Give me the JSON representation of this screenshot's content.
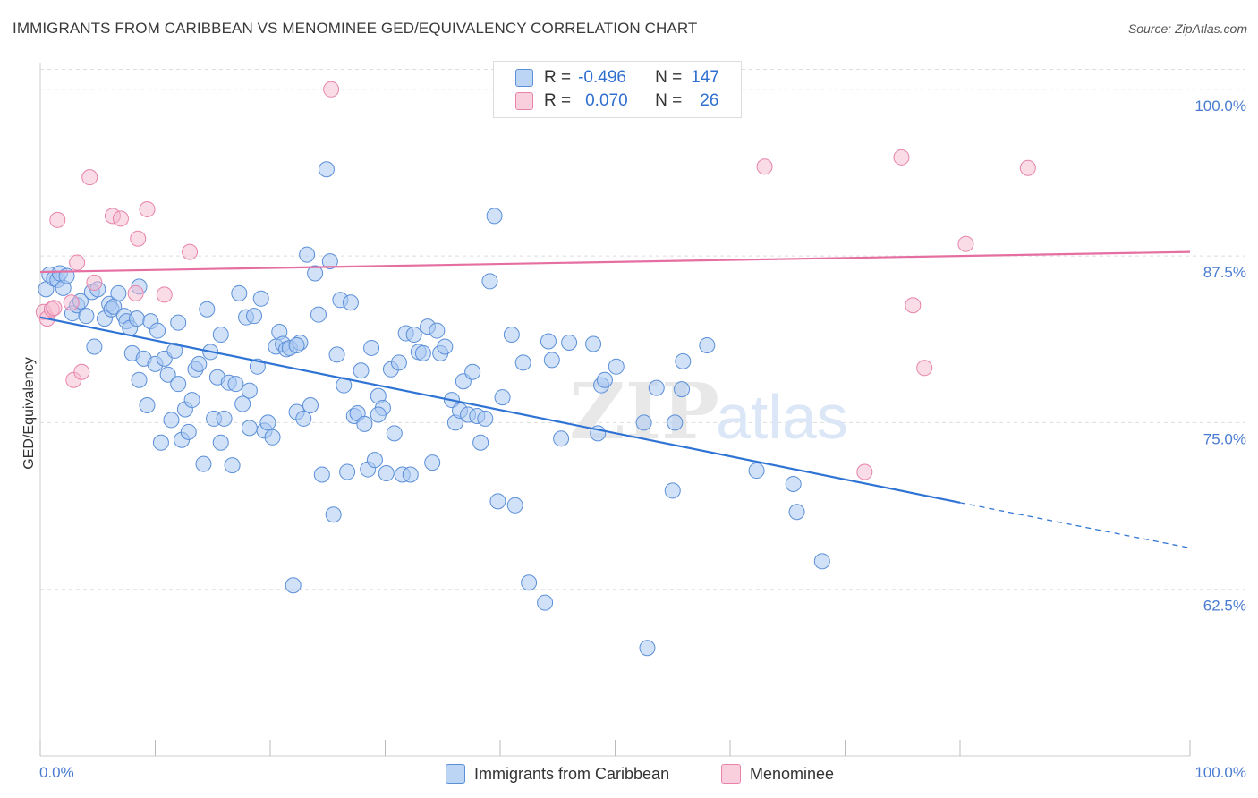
{
  "header": {
    "title": "IMMIGRANTS FROM CARIBBEAN VS MENOMINEE GED/EQUIVALENCY CORRELATION CHART",
    "source": "Source: ZipAtlas.com"
  },
  "legend": {
    "rows": [
      {
        "r_label": "R =",
        "r_value": "-0.496",
        "n_label": "N =",
        "n_value": "147"
      },
      {
        "r_label": "R =",
        "r_value": "0.070",
        "n_label": "N =",
        "n_value": "26"
      }
    ]
  },
  "bottom_legend": [
    "Immigrants from Caribbean",
    "Menominee"
  ],
  "colors": {
    "blue": "#2f74d4",
    "blue_fill": "#a9c8f2",
    "pink": "#e46fa0",
    "pink_fill": "#f6b9d0",
    "tick_text": "#4a7bd0",
    "grid": "#dddddd"
  },
  "chart_data": {
    "type": "scatter",
    "title": "IMMIGRANTS FROM CARIBBEAN VS MENOMINEE GED/EQUIVALENCY CORRELATION CHART",
    "xlabel": "",
    "ylabel": "GED/Equivalency",
    "xlim": [
      0,
      100
    ],
    "ylim": [
      50,
      102
    ],
    "x_tick_labels": [
      "0.0%",
      "100.0%"
    ],
    "y_ticks": [
      62.5,
      75.0,
      87.5,
      100.0
    ],
    "y_tick_labels": [
      "62.5%",
      "75.0%",
      "87.5%",
      "100.0%"
    ],
    "grid": true,
    "legend_position": "top-center",
    "watermark": "ZIPatlas",
    "series": [
      {
        "name": "Immigrants from Caribbean",
        "color": "#2f74d4",
        "r": -0.496,
        "n": 147,
        "trend": {
          "x": [
            0,
            80
          ],
          "y": [
            82.9,
            69.0
          ],
          "dashed_to": [
            100,
            65.6
          ]
        },
        "points": [
          [
            0.5,
            85.0
          ],
          [
            0.8,
            86.1
          ],
          [
            1.2,
            85.8
          ],
          [
            1.5,
            85.7
          ],
          [
            1.7,
            86.2
          ],
          [
            2.0,
            85.1
          ],
          [
            2.3,
            86.0
          ],
          [
            2.8,
            83.2
          ],
          [
            3.2,
            83.8
          ],
          [
            3.5,
            84.1
          ],
          [
            4.0,
            83.0
          ],
          [
            4.5,
            84.8
          ],
          [
            4.7,
            80.7
          ],
          [
            5.0,
            85.0
          ],
          [
            5.6,
            82.8
          ],
          [
            6.0,
            83.9
          ],
          [
            6.2,
            83.5
          ],
          [
            6.4,
            83.7
          ],
          [
            6.8,
            84.7
          ],
          [
            7.3,
            83.0
          ],
          [
            7.5,
            82.6
          ],
          [
            7.8,
            82.1
          ],
          [
            8.0,
            80.2
          ],
          [
            8.4,
            82.8
          ],
          [
            8.6,
            85.2
          ],
          [
            9.0,
            79.8
          ],
          [
            9.3,
            76.3
          ],
          [
            9.6,
            82.6
          ],
          [
            10.0,
            79.4
          ],
          [
            10.2,
            81.9
          ],
          [
            10.5,
            73.5
          ],
          [
            10.8,
            79.8
          ],
          [
            11.1,
            78.6
          ],
          [
            11.4,
            75.2
          ],
          [
            11.7,
            80.4
          ],
          [
            12.0,
            82.5
          ],
          [
            12.3,
            73.7
          ],
          [
            12.6,
            76.0
          ],
          [
            12.9,
            74.3
          ],
          [
            13.2,
            76.7
          ],
          [
            13.5,
            79.0
          ],
          [
            13.8,
            79.4
          ],
          [
            14.2,
            71.9
          ],
          [
            14.5,
            83.5
          ],
          [
            14.8,
            80.3
          ],
          [
            15.1,
            75.3
          ],
          [
            15.4,
            78.4
          ],
          [
            15.7,
            81.6
          ],
          [
            16.0,
            75.3
          ],
          [
            16.4,
            78.0
          ],
          [
            16.7,
            71.8
          ],
          [
            17.0,
            77.9
          ],
          [
            17.3,
            84.7
          ],
          [
            17.6,
            76.4
          ],
          [
            17.9,
            82.9
          ],
          [
            18.2,
            77.4
          ],
          [
            18.6,
            83.0
          ],
          [
            18.9,
            79.2
          ],
          [
            19.2,
            84.3
          ],
          [
            19.5,
            74.4
          ],
          [
            19.8,
            75.0
          ],
          [
            20.2,
            73.9
          ],
          [
            20.5,
            80.7
          ],
          [
            20.8,
            81.8
          ],
          [
            21.1,
            80.9
          ],
          [
            21.4,
            80.5
          ],
          [
            21.7,
            80.6
          ],
          [
            22.0,
            62.8
          ],
          [
            22.3,
            75.8
          ],
          [
            22.6,
            81.0
          ],
          [
            22.9,
            75.3
          ],
          [
            23.2,
            87.6
          ],
          [
            23.5,
            76.3
          ],
          [
            23.9,
            86.2
          ],
          [
            24.2,
            83.1
          ],
          [
            24.5,
            71.1
          ],
          [
            24.9,
            94.0
          ],
          [
            25.2,
            87.1
          ],
          [
            25.5,
            68.1
          ],
          [
            25.8,
            80.1
          ],
          [
            26.1,
            84.2
          ],
          [
            26.4,
            77.8
          ],
          [
            26.7,
            71.3
          ],
          [
            27.0,
            84.0
          ],
          [
            27.3,
            75.5
          ],
          [
            27.6,
            75.7
          ],
          [
            27.9,
            78.9
          ],
          [
            28.2,
            74.9
          ],
          [
            28.5,
            71.5
          ],
          [
            28.8,
            80.6
          ],
          [
            29.1,
            72.2
          ],
          [
            29.4,
            77.0
          ],
          [
            29.8,
            76.1
          ],
          [
            30.1,
            71.2
          ],
          [
            30.5,
            79.0
          ],
          [
            30.8,
            74.2
          ],
          [
            31.2,
            79.5
          ],
          [
            31.5,
            71.1
          ],
          [
            31.8,
            81.7
          ],
          [
            32.2,
            71.1
          ],
          [
            32.5,
            81.6
          ],
          [
            32.9,
            80.3
          ],
          [
            33.3,
            80.2
          ],
          [
            33.7,
            82.2
          ],
          [
            34.1,
            72.0
          ],
          [
            34.5,
            81.9
          ],
          [
            34.8,
            80.2
          ],
          [
            35.2,
            80.7
          ],
          [
            35.8,
            76.7
          ],
          [
            36.1,
            75.0
          ],
          [
            36.5,
            75.9
          ],
          [
            36.8,
            78.1
          ],
          [
            37.2,
            75.6
          ],
          [
            37.6,
            78.8
          ],
          [
            38.0,
            75.5
          ],
          [
            38.3,
            73.5
          ],
          [
            38.7,
            75.3
          ],
          [
            39.1,
            85.6
          ],
          [
            39.5,
            90.5
          ],
          [
            39.8,
            69.1
          ],
          [
            40.2,
            76.9
          ],
          [
            41.0,
            81.6
          ],
          [
            41.3,
            68.8
          ],
          [
            42.0,
            79.5
          ],
          [
            42.5,
            63.0
          ],
          [
            43.9,
            61.5
          ],
          [
            44.2,
            81.1
          ],
          [
            44.5,
            79.7
          ],
          [
            45.3,
            73.8
          ],
          [
            46.0,
            81.0
          ],
          [
            48.1,
            80.9
          ],
          [
            48.5,
            74.2
          ],
          [
            48.8,
            77.8
          ],
          [
            49.1,
            78.2
          ],
          [
            50.1,
            79.2
          ],
          [
            52.5,
            75.0
          ],
          [
            52.8,
            58.1
          ],
          [
            53.6,
            77.6
          ],
          [
            55.0,
            69.9
          ],
          [
            55.2,
            75.0
          ],
          [
            55.9,
            79.6
          ],
          [
            58.0,
            80.8
          ],
          [
            62.3,
            71.4
          ],
          [
            65.5,
            70.4
          ],
          [
            65.8,
            68.3
          ],
          [
            68.0,
            64.6
          ],
          [
            55.8,
            77.5
          ],
          [
            29.4,
            75.6
          ],
          [
            18.2,
            74.6
          ],
          [
            22.3,
            80.8
          ],
          [
            12.0,
            77.9
          ],
          [
            8.6,
            78.2
          ],
          [
            15.7,
            73.5
          ]
        ]
      },
      {
        "name": "Menominee",
        "color": "#e46fa0",
        "r": 0.07,
        "n": 26,
        "trend": {
          "x": [
            0,
            100
          ],
          "y": [
            86.3,
            87.8
          ]
        },
        "points": [
          [
            0.3,
            83.3
          ],
          [
            0.6,
            82.8
          ],
          [
            1.0,
            83.5
          ],
          [
            1.5,
            90.2
          ],
          [
            2.7,
            84.0
          ],
          [
            2.9,
            78.2
          ],
          [
            3.2,
            87.0
          ],
          [
            3.6,
            78.8
          ],
          [
            4.3,
            93.4
          ],
          [
            4.7,
            85.5
          ],
          [
            6.3,
            90.5
          ],
          [
            7.0,
            90.3
          ],
          [
            8.3,
            84.7
          ],
          [
            8.5,
            88.8
          ],
          [
            9.3,
            91.0
          ],
          [
            10.8,
            84.6
          ],
          [
            13.0,
            87.8
          ],
          [
            25.3,
            100.0
          ],
          [
            63.0,
            94.2
          ],
          [
            74.9,
            94.9
          ],
          [
            75.9,
            83.8
          ],
          [
            76.9,
            79.1
          ],
          [
            80.5,
            88.4
          ],
          [
            85.9,
            94.1
          ],
          [
            71.7,
            71.3
          ],
          [
            1.2,
            83.6
          ]
        ]
      }
    ]
  }
}
